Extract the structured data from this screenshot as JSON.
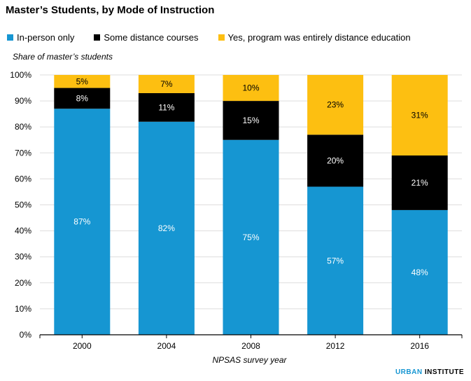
{
  "chart_data": {
    "type": "bar",
    "stacked": true,
    "title": "Master’s Students, by Mode of Instruction",
    "ylabel": "Share of master’s students",
    "xlabel": "NPSAS survey year",
    "ylim": [
      0,
      100
    ],
    "yticks": [
      "0%",
      "10%",
      "20%",
      "30%",
      "40%",
      "50%",
      "60%",
      "70%",
      "80%",
      "90%",
      "100%"
    ],
    "grid": true,
    "legend_position": "top",
    "categories": [
      "2000",
      "2004",
      "2008",
      "2012",
      "2016"
    ],
    "series": [
      {
        "name": "In-person only",
        "color": "#1696d2",
        "label_color": "#ffffff",
        "values": [
          87,
          82,
          75,
          57,
          48
        ]
      },
      {
        "name": "Some distance courses",
        "color": "#000000",
        "label_color": "#ffffff",
        "values": [
          8,
          11,
          15,
          20,
          21
        ]
      },
      {
        "name": "Yes, program was entirely distance education",
        "color": "#fdbf11",
        "label_color": "#000000",
        "values": [
          5,
          7,
          10,
          23,
          31
        ]
      }
    ]
  },
  "brand": {
    "part1": "URBAN",
    "part2": "INSTITUTE"
  }
}
